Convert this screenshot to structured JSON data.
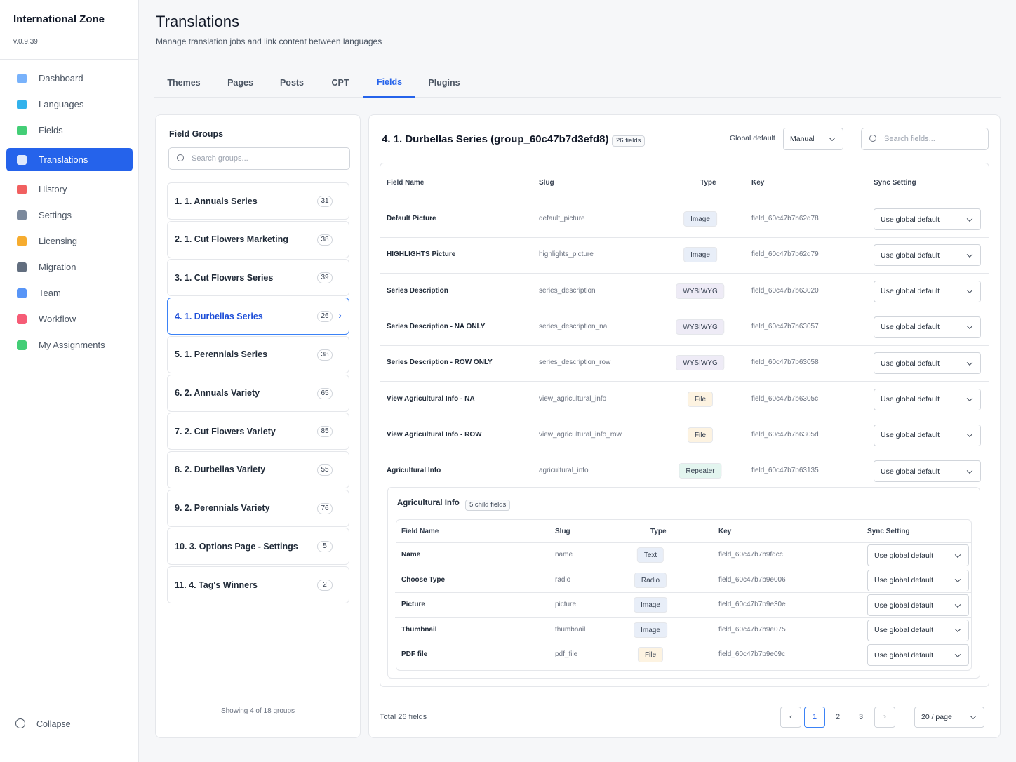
{
  "sidebar": {
    "brand": "International Zone",
    "version": "v.0.9.39",
    "nav": [
      "Dashboard",
      "Languages",
      "Fields",
      "Translations",
      "History",
      "Settings",
      "Licensing",
      "Migration",
      "Team",
      "Workflow",
      "My Assignments"
    ],
    "active": 3,
    "collapse": "Collapse"
  },
  "header": {
    "title": "Translations",
    "subtitle": "Manage translation jobs and link content between languages"
  },
  "tabs": {
    "items": [
      "Themes",
      "Pages",
      "Posts",
      "CPT",
      "Fields",
      "Plugins"
    ],
    "active": 4
  },
  "groups": {
    "title": "Field Groups",
    "search": "Search groups...",
    "active": 3,
    "items": [
      {
        "name": "1. 1. Annuals Series",
        "count": "31"
      },
      {
        "name": "2. 1. Cut Flowers Marketing",
        "count": "38"
      },
      {
        "name": "3. 1. Cut Flowers Series",
        "count": "39"
      },
      {
        "name": "4. 1. Durbellas Series",
        "count": "26"
      },
      {
        "name": "5. 1. Perennials Series",
        "count": "38"
      },
      {
        "name": "6. 2. Annuals Variety",
        "count": "65"
      },
      {
        "name": "7. 2. Cut Flowers Variety",
        "count": "85"
      },
      {
        "name": "8. 2. Durbellas Variety",
        "count": "55"
      },
      {
        "name": "9. 2. Perennials Variety",
        "count": "76"
      },
      {
        "name": "10. 3. Options Page - Settings",
        "count": "5"
      },
      {
        "name": "11. 4. Tag's Winners",
        "count": "2"
      }
    ],
    "footer": "Showing 4 of 18 groups"
  },
  "detail": {
    "title": "4. 1. Durbellas Series (group_60c47b7d3efd8)",
    "badge": "26 fields",
    "global_label": "Global default",
    "global_value": "Manual",
    "search": "Search fields...",
    "columns": [
      "Field Name",
      "Slug",
      "Type",
      "Key",
      "Sync Setting"
    ],
    "rows": [
      [
        "Default Picture",
        "default_picture",
        "Image",
        "field_60c47b7b62d78",
        "Use global default"
      ],
      [
        "HIGHLIGHTS Picture",
        "highlights_picture",
        "Image",
        "field_60c47b7b62d79",
        "Use global default"
      ],
      [
        "Series Description",
        "series_description",
        "WYSIWYG",
        "field_60c47b7b63020",
        "Use global default"
      ],
      [
        "Series Description - NA ONLY",
        "series_description_na",
        "WYSIWYG",
        "field_60c47b7b63057",
        "Use global default"
      ],
      [
        "Series Description - ROW ONLY",
        "series_description_row",
        "WYSIWYG",
        "field_60c47b7b63058",
        "Use global default"
      ],
      [
        "View Agricultural Info - NA",
        "view_agricultural_info",
        "File",
        "field_60c47b7b6305c",
        "Use global default"
      ],
      [
        "View Agricultural Info - ROW",
        "view_agricultural_info_row",
        "File",
        "field_60c47b7b6305d",
        "Use global default"
      ],
      [
        "Agricultural Info",
        "agricultural_info",
        "Repeater",
        "field_60c47b7b63135",
        "Use global default"
      ]
    ],
    "row_colors": [
      "#e8eef8",
      "#e8eef8",
      "#eeebf6",
      "#eeebf6",
      "#eeebf6",
      "#fdf3e1",
      "#fdf3e1",
      "#e3f5ef"
    ],
    "sub": {
      "title": "Agricultural Info",
      "badge": "5 child fields",
      "columns": [
        "Field Name",
        "Slug",
        "Type",
        "Key",
        "Sync Setting"
      ],
      "rows": [
        [
          "Name",
          "name",
          "Text",
          "field_60c47b7b9fdcc",
          "Use global default"
        ],
        [
          "Choose Type",
          "radio",
          "Radio",
          "field_60c47b7b9e006",
          "Use global default"
        ],
        [
          "Picture",
          "picture",
          "Image",
          "field_60c47b7b9e30e",
          "Use global default"
        ],
        [
          "Thumbnail",
          "thumbnail",
          "Image",
          "field_60c47b7b9e075",
          "Use global default"
        ],
        [
          "PDF file",
          "pdf_file",
          "File",
          "field_60c47b7b9e09c",
          "Use global default"
        ]
      ],
      "row_colors": [
        "#e8eef8",
        "#e8eef8",
        "#e8eef8",
        "#e8eef8",
        "#fdf3e1"
      ]
    },
    "total": "Total 26 fields",
    "pages": [
      "1",
      "2",
      "3"
    ],
    "current_page": 0,
    "page_size": "20 / page"
  }
}
